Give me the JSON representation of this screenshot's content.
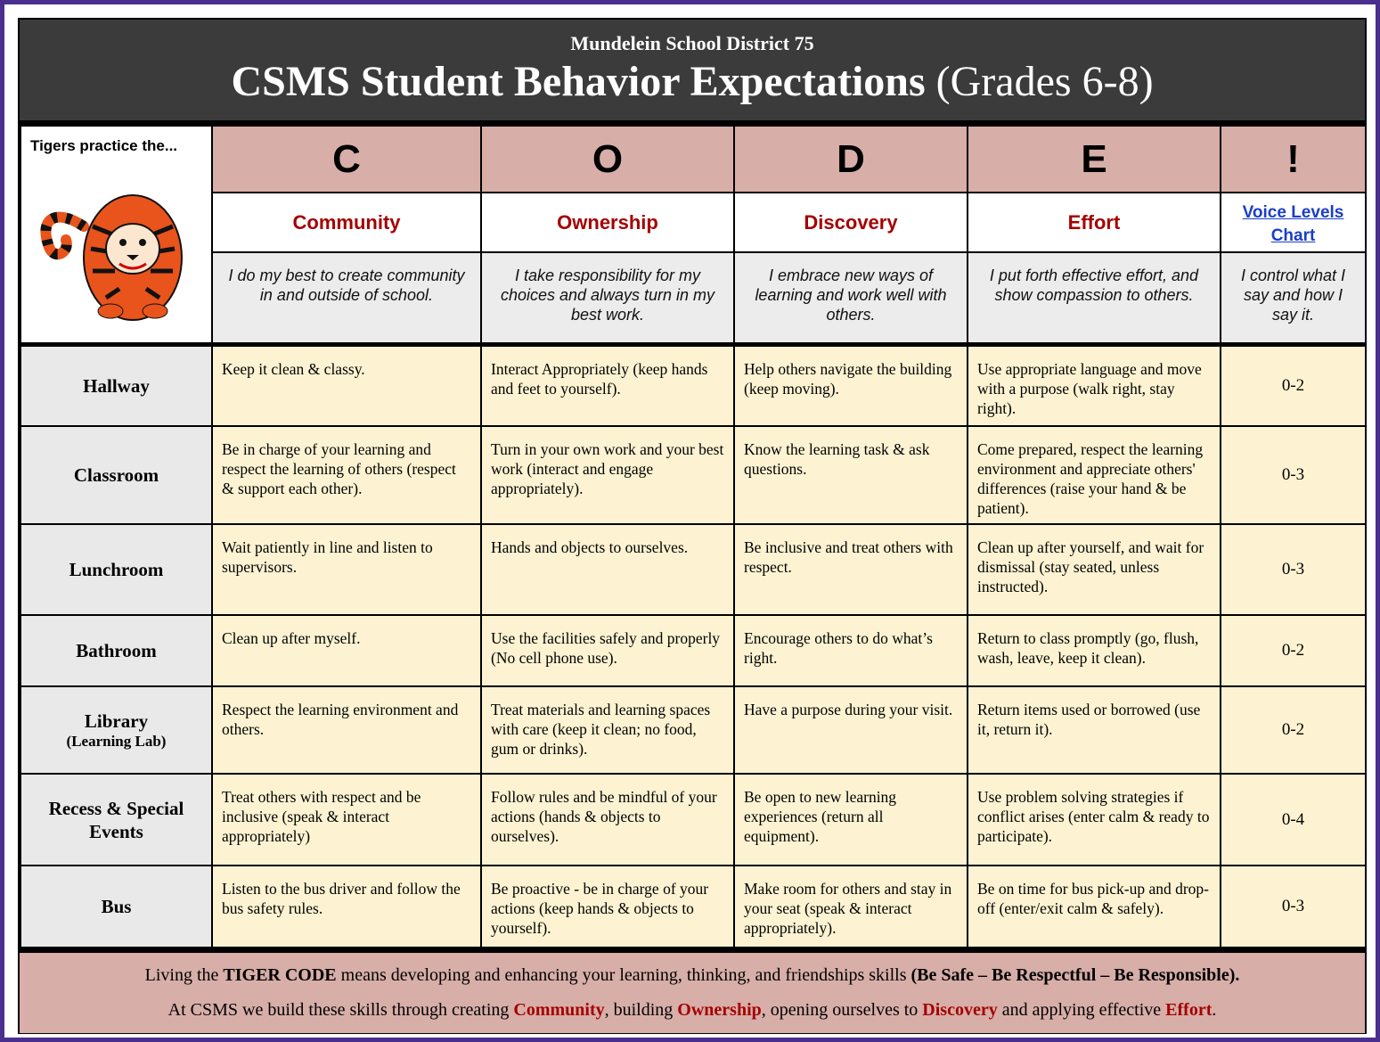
{
  "header": {
    "district": "Mundelein School District 75",
    "title": "CSMS Student Behavior Expectations",
    "grades": "(Grades 6-8)"
  },
  "corner": {
    "label": "Tigers practice the..."
  },
  "columns": [
    {
      "letter": "C",
      "name": "Community",
      "description": "I do my best to create community in and outside of school."
    },
    {
      "letter": "O",
      "name": "Ownership",
      "description": "I take responsibility for my choices and always turn in my best work."
    },
    {
      "letter": "D",
      "name": "Discovery",
      "description": "I embrace new ways of learning and work well with others."
    },
    {
      "letter": "E",
      "name": "Effort",
      "description": "I put forth effective effort, and show compassion to others."
    },
    {
      "letter": "!",
      "name": "Voice Levels Chart",
      "description": "I control what I say and how I say it."
    }
  ],
  "rows": [
    {
      "location": "Hallway",
      "cells": [
        "Keep it clean & classy.",
        "Interact Appropriately (keep hands and feet to yourself).",
        "Help others navigate the building (keep moving).",
        "Use appropriate language and move with a purpose (walk right, stay right)."
      ],
      "voice": "0-2"
    },
    {
      "location": "Classroom",
      "cells": [
        "Be in charge of your learning and respect the learning of others (respect & support each other).",
        "Turn in your own work and your best work (interact and engage appropriately).",
        "Know the learning task & ask questions.",
        "Come prepared, respect the learning environment and appreciate others' differences (raise your hand & be patient)."
      ],
      "voice": "0-3"
    },
    {
      "location": "Lunchroom",
      "cells": [
        "Wait patiently in line and listen to supervisors.",
        "Hands and objects to ourselves.",
        "Be inclusive and treat others with respect.",
        "Clean up after yourself, and wait for dismissal (stay seated, unless instructed)."
      ],
      "voice": "0-3"
    },
    {
      "location": "Bathroom",
      "cells": [
        "Clean up after myself.",
        "Use the facilities safely and properly (No cell phone use).",
        "Encourage others to do what’s right.",
        "Return to class promptly (go, flush, wash, leave, keep it clean)."
      ],
      "voice": "0-2"
    },
    {
      "location": "Library",
      "sublabel": "(Learning Lab)",
      "cells": [
        "Respect the learning environment and others.",
        "Treat materials and learning spaces with care (keep it clean; no food, gum or drinks).",
        "Have a purpose during your visit.",
        "Return items used or borrowed (use it, return it)."
      ],
      "voice": "0-2"
    },
    {
      "location": "Recess & Special Events",
      "cells": [
        "Treat others with respect and be inclusive (speak & interact appropriately)",
        "Follow rules and be mindful of your actions (hands & objects to ourselves).",
        "Be open to new learning experiences (return all equipment).",
        "Use problem solving strategies if conflict arises (enter calm & ready to participate)."
      ],
      "voice": "0-4"
    },
    {
      "location": "Bus",
      "cells": [
        "Listen to the bus driver and follow the bus safety rules.",
        "Be proactive - be in charge of your actions (keep hands & objects to yourself).",
        "Make room for others and stay in your seat (speak & interact appropriately).",
        "Be on time for bus pick-up and drop-off (enter/exit calm & safely)."
      ],
      "voice": "0-3"
    }
  ],
  "footer": {
    "lines": [
      [
        "Living the ",
        "TIGER CODE",
        " means developing and enhancing your learning, thinking, and friendships skills ",
        "(Be Safe – Be Respectful – Be Responsible)."
      ],
      [
        "At CSMS we build these skills through creating ",
        "Community",
        ", building ",
        "Ownership",
        ", opening ourselves to ",
        "Discovery",
        " and applying effective ",
        "Effort",
        "."
      ]
    ]
  }
}
